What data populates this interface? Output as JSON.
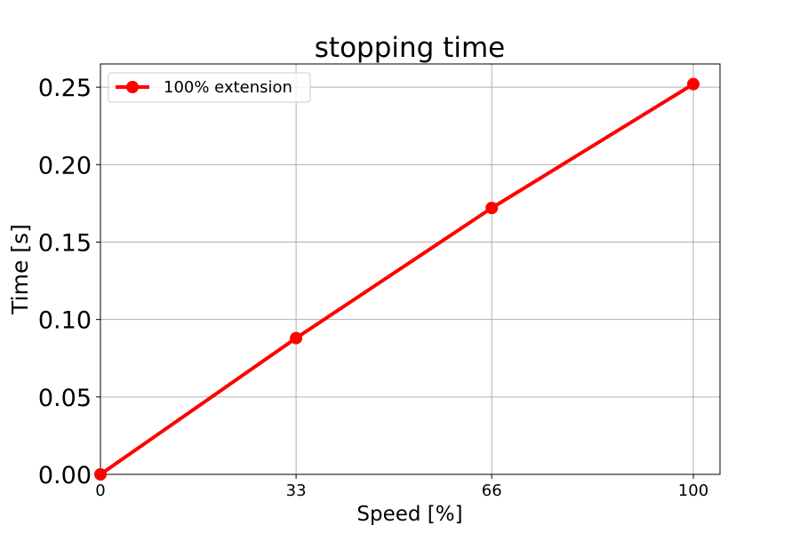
{
  "chart_data": {
    "type": "line",
    "title": "stopping time",
    "xlabel": "Speed [%]",
    "ylabel": "Time [s]",
    "x": [
      0,
      33,
      66,
      100
    ],
    "xticks": [
      "0",
      "33",
      "66",
      "100"
    ],
    "yticks": [
      "0.00",
      "0.05",
      "0.10",
      "0.15",
      "0.20",
      "0.25"
    ],
    "ytick_values": [
      0,
      0.05,
      0.1,
      0.15,
      0.2,
      0.25
    ],
    "xlim": [
      0,
      104.5
    ],
    "ylim": [
      0,
      0.265
    ],
    "grid": true,
    "legend_position": "top-left",
    "series": [
      {
        "name": "100% extension",
        "color": "#ff0000",
        "marker": "circle",
        "values": [
          0.0,
          0.088,
          0.172,
          0.252
        ]
      }
    ]
  }
}
